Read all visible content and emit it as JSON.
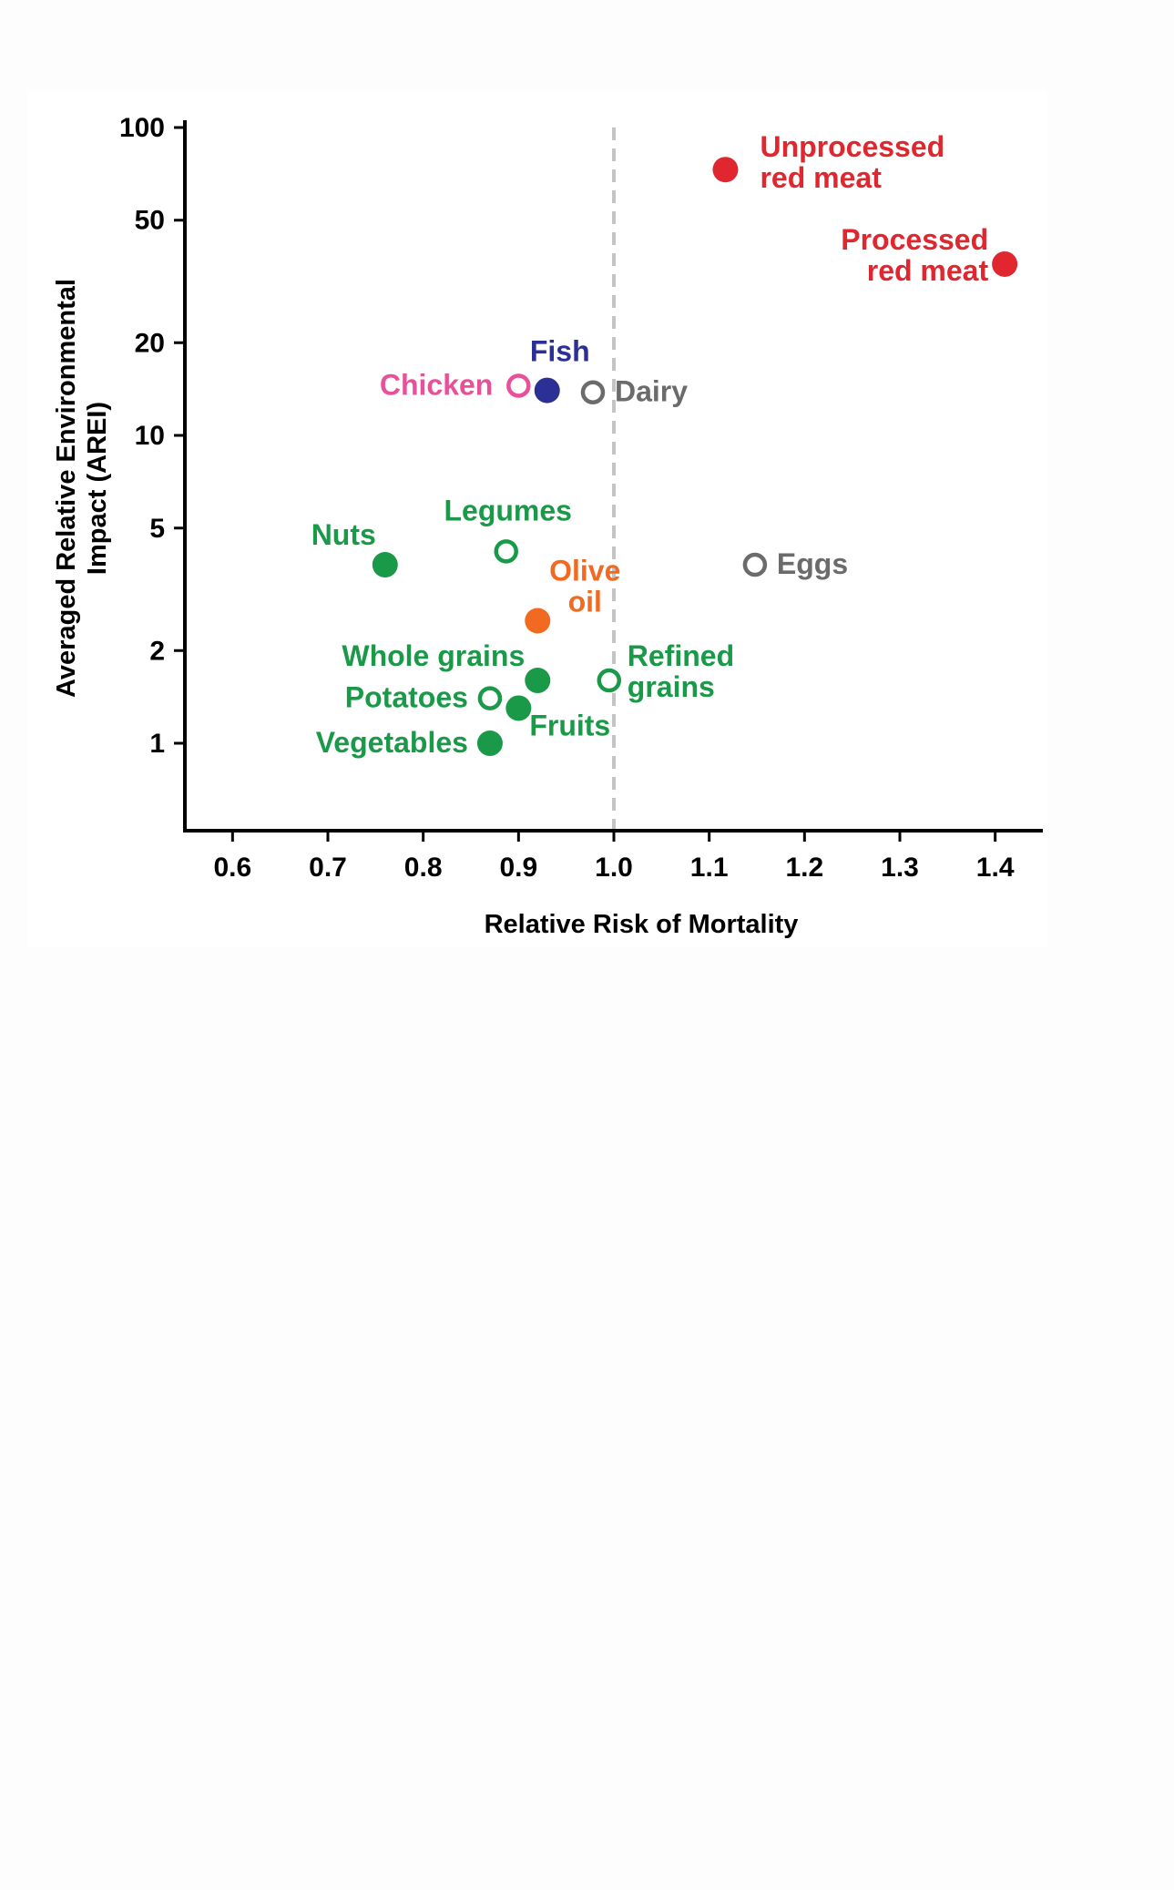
{
  "chart_data": {
    "type": "scatter",
    "title": "",
    "xlabel": "Relative Risk of Mortality",
    "ylabel": "Averaged Relative Environmental\nImpact (AREI)",
    "xlim": [
      0.55,
      1.45
    ],
    "ylim": [
      0.52,
      100
    ],
    "yscale": "log",
    "xticks": [
      "0.6",
      "0.7",
      "0.8",
      "0.9",
      "1.0",
      "1.1",
      "1.2",
      "1.3",
      "1.4"
    ],
    "yticks": [
      "1",
      "2",
      "5",
      "10",
      "20",
      "50",
      "100"
    ],
    "grid": false,
    "reference_line": {
      "x": 1.0,
      "style": "dashed"
    },
    "colors": {
      "plant": "#1a9a48",
      "red_meat": "#e0262e",
      "fish": "#2b2f96",
      "chicken": "#e8509a",
      "other": "#6b6b6b",
      "olive_oil": "#f26a21",
      "axis": "#000000",
      "reference": "#c4c4c4"
    },
    "points": [
      {
        "label": [
          "Unprocessed",
          "red meat"
        ],
        "x": 1.117,
        "y": 73,
        "filled": true,
        "color": "red_meat",
        "label_side": "right"
      },
      {
        "label": [
          "Processed",
          "red meat"
        ],
        "x": 1.41,
        "y": 36,
        "filled": true,
        "color": "red_meat",
        "label_side": "left"
      },
      {
        "label": [
          "Fish"
        ],
        "x": 0.93,
        "y": 14,
        "filled": true,
        "color": "fish",
        "label_side": "above"
      },
      {
        "label": [
          "Chicken"
        ],
        "x": 0.9,
        "y": 14.5,
        "filled": false,
        "color": "chicken",
        "label_side": "left"
      },
      {
        "label": [
          "Dairy"
        ],
        "x": 0.978,
        "y": 13.8,
        "filled": false,
        "color": "other",
        "label_side": "right"
      },
      {
        "label": [
          "Nuts"
        ],
        "x": 0.76,
        "y": 3.8,
        "filled": true,
        "color": "plant",
        "label_side": "above-left"
      },
      {
        "label": [
          "Legumes"
        ],
        "x": 0.887,
        "y": 4.2,
        "filled": false,
        "color": "plant",
        "label_side": "above"
      },
      {
        "label": [
          "Eggs"
        ],
        "x": 1.148,
        "y": 3.8,
        "filled": false,
        "color": "other",
        "label_side": "right"
      },
      {
        "label": [
          "Olive",
          "oil"
        ],
        "x": 0.92,
        "y": 2.5,
        "filled": true,
        "color": "olive_oil",
        "label_side": "above-right"
      },
      {
        "label": [
          "Whole grains"
        ],
        "x": 0.92,
        "y": 1.6,
        "filled": true,
        "color": "plant",
        "label_side": "above-left"
      },
      {
        "label": [
          "Refined",
          "grains"
        ],
        "x": 0.995,
        "y": 1.6,
        "filled": false,
        "color": "plant",
        "label_side": "right"
      },
      {
        "label": [
          "Potatoes"
        ],
        "x": 0.87,
        "y": 1.4,
        "filled": false,
        "color": "plant",
        "label_side": "left"
      },
      {
        "label": [
          "Fruits"
        ],
        "x": 0.9,
        "y": 1.3,
        "filled": true,
        "color": "plant",
        "label_side": "below-right"
      },
      {
        "label": [
          "Vegetables"
        ],
        "x": 0.87,
        "y": 1.0,
        "filled": true,
        "color": "plant",
        "label_side": "left"
      }
    ]
  }
}
